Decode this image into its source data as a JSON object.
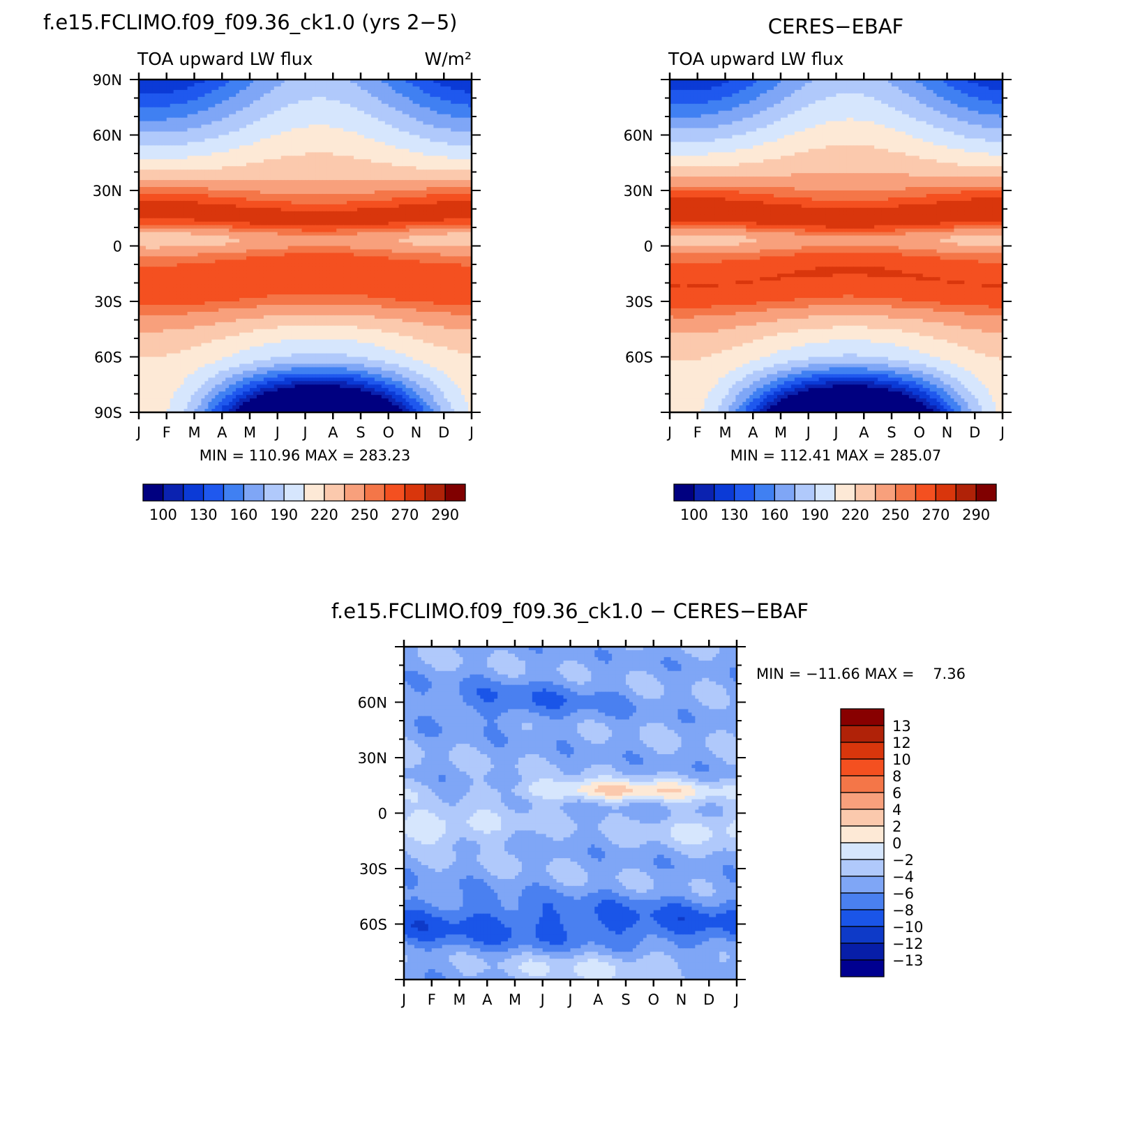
{
  "colors": {
    "abs_levels": [
      "#000080",
      "#0a22b0",
      "#0b3ad6",
      "#1f58ee",
      "#4080f2",
      "#7fa6f6",
      "#b0c9fb",
      "#d6e6fd",
      "#fde9d6",
      "#fbc9ad",
      "#f8a07c",
      "#f47648",
      "#f45020",
      "#d9360c",
      "#b02208",
      "#800000"
    ],
    "diff_levels": [
      "#000090",
      "#071ea8",
      "#0e3ac8",
      "#1a55e8",
      "#4a80f0",
      "#7fa6f6",
      "#b0c9fb",
      "#d6e6fd",
      "#fde9d6",
      "#fbc9ad",
      "#f8a07c",
      "#f47648",
      "#f45020",
      "#d9360c",
      "#b02208",
      "#880000"
    ]
  },
  "months": [
    "J",
    "F",
    "M",
    "A",
    "M",
    "J",
    "J",
    "A",
    "S",
    "O",
    "N",
    "D",
    "J"
  ],
  "chart_data": [
    {
      "type": "heatmap",
      "title": "f.e15.FCLIMO.f09_f09.36_ck1.0 (yrs 2−5)",
      "left_string": "TOA upward LW flux",
      "right_string": "W/m²",
      "x_ticklabels": [
        "J",
        "F",
        "M",
        "A",
        "M",
        "J",
        "J",
        "A",
        "S",
        "O",
        "N",
        "D",
        "J"
      ],
      "y_ticklabels": [
        "90N",
        "60N",
        "30N",
        "0",
        "30S",
        "60S",
        "90S"
      ],
      "ylim": [
        -90,
        90
      ],
      "stats": "MIN = 110.96 MAX = 283.23",
      "min": 110.96,
      "max": 283.23,
      "colorbar_labels": [
        "100",
        "130",
        "160",
        "190",
        "220",
        "250",
        "270",
        "290"
      ],
      "grid": false,
      "colorbar_placement": "bottom"
    },
    {
      "type": "heatmap",
      "title": "CERES−EBAF",
      "left_string": "TOA upward LW flux",
      "x_ticklabels": [
        "J",
        "F",
        "M",
        "A",
        "M",
        "J",
        "J",
        "A",
        "S",
        "O",
        "N",
        "D",
        "J"
      ],
      "y_ticklabels": [
        "60N",
        "30N",
        "0",
        "30S",
        "60S"
      ],
      "ylim": [
        -90,
        90
      ],
      "stats": "MIN = 112.41 MAX = 285.07",
      "min": 112.41,
      "max": 285.07,
      "colorbar_labels": [
        "100",
        "130",
        "160",
        "190",
        "220",
        "250",
        "270",
        "290"
      ],
      "grid": false,
      "colorbar_placement": "bottom"
    },
    {
      "type": "heatmap",
      "title": "f.e15.FCLIMO.f09_f09.36_ck1.0 − CERES−EBAF",
      "x_ticklabels": [
        "J",
        "F",
        "M",
        "A",
        "M",
        "J",
        "J",
        "A",
        "S",
        "O",
        "N",
        "D",
        "J"
      ],
      "y_ticklabels": [
        "60N",
        "30N",
        "0",
        "30S",
        "60S"
      ],
      "ylim": [
        -90,
        90
      ],
      "stats": "MIN = −11.66 MAX =    7.36",
      "min": -11.66,
      "max": 7.36,
      "colorbar_labels": [
        "13",
        "12",
        "10",
        "8",
        "6",
        "4",
        "2",
        "0",
        "−2",
        "−4",
        "−6",
        "−8",
        "−10",
        "−12",
        "−13"
      ],
      "grid": false,
      "colorbar_placement": "right"
    }
  ]
}
